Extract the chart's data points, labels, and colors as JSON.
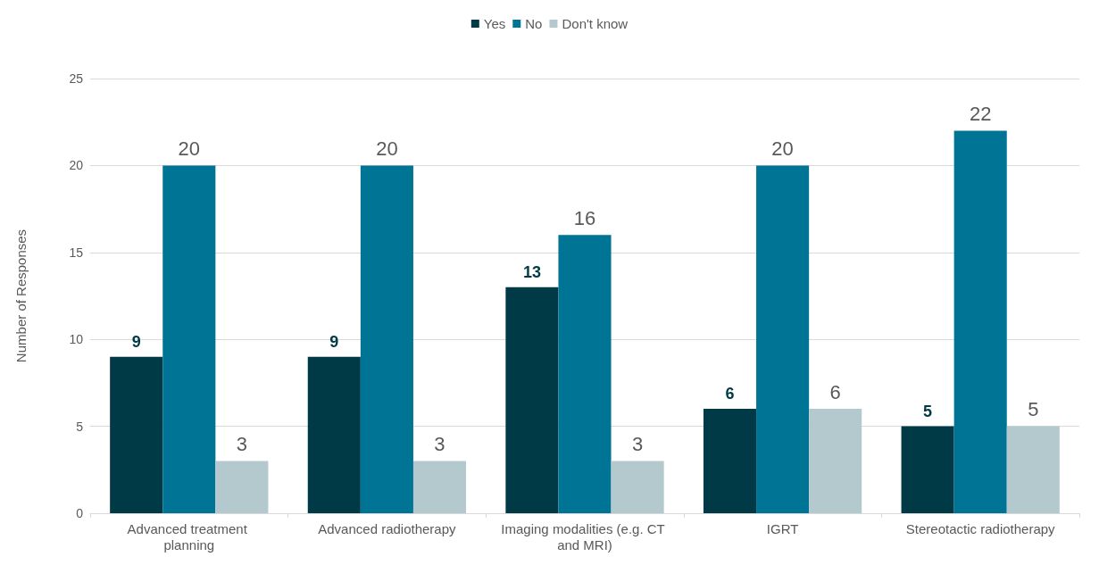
{
  "chart_data": {
    "type": "bar",
    "ylabel": "Number of Responses",
    "categories": [
      "Advanced treatment planning",
      "Advanced radiotherapy",
      "Imaging modalities (e.g. CT and MRI)",
      "IGRT",
      "Stereotactic radiotherapy"
    ],
    "series": [
      {
        "name": "Yes",
        "color": "#003a47",
        "values": [
          9,
          9,
          13,
          6,
          5
        ]
      },
      {
        "name": "No",
        "color": "#007494",
        "values": [
          20,
          20,
          16,
          20,
          22
        ]
      },
      {
        "name": "Don't know",
        "color": "#b3c9ce",
        "values": [
          3,
          3,
          3,
          6,
          5
        ]
      }
    ],
    "ylim": [
      0,
      25
    ],
    "yticks": [
      0,
      5,
      10,
      15,
      20,
      25
    ],
    "grid": "y",
    "legend": "top",
    "data_labels": true
  }
}
